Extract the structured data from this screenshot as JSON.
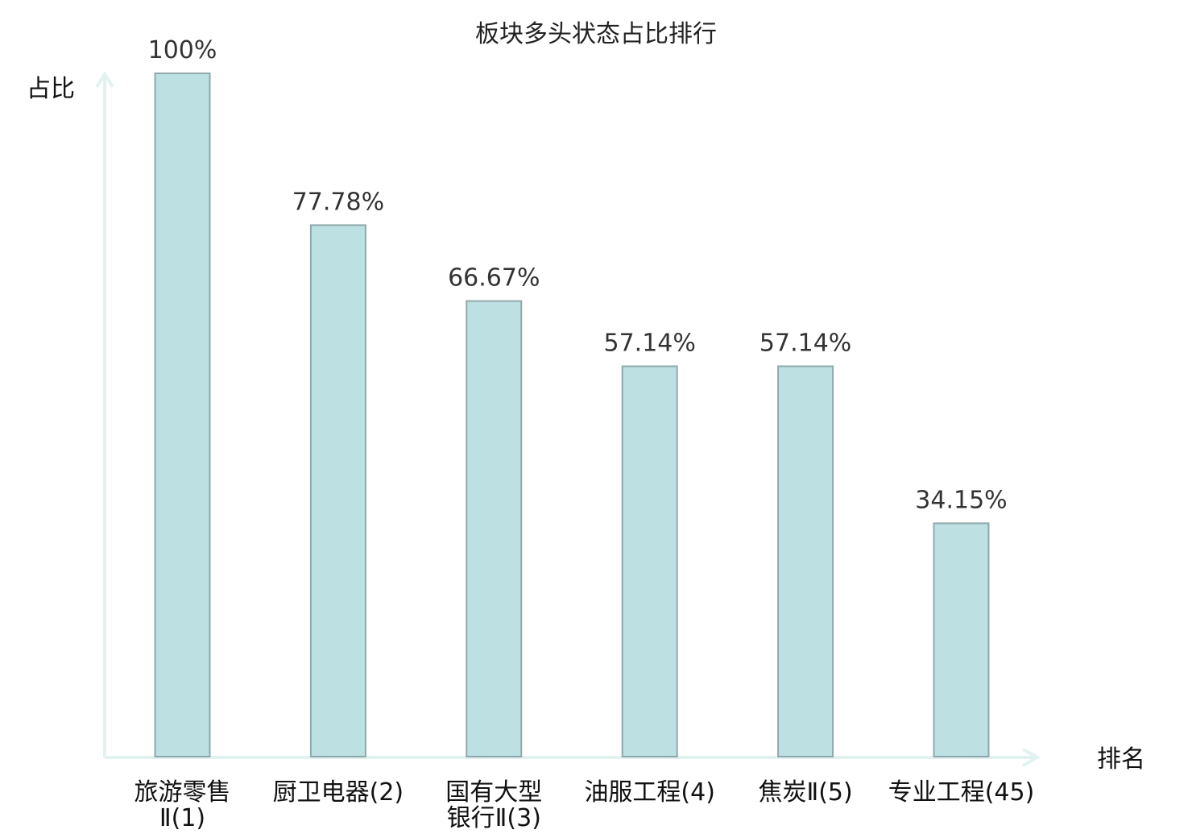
{
  "chart_data": {
    "type": "bar",
    "title": "板块多头状态占比排行",
    "ylabel": "占比",
    "xlabel": "排名",
    "ylim": [
      0,
      100
    ],
    "grid": false,
    "legend": "none",
    "categories": [
      [
        "旅游零售",
        "Ⅱ(1)"
      ],
      [
        "厨卫电器(2)"
      ],
      [
        "国有大型",
        "银行Ⅱ(3)"
      ],
      [
        "油服工程(4)"
      ],
      [
        "焦炭Ⅱ(5)"
      ],
      [
        "专业工程(45)"
      ]
    ],
    "values": [
      100,
      77.78,
      66.67,
      57.14,
      57.14,
      34.15
    ],
    "value_labels": [
      "100%",
      "77.78%",
      "66.67%",
      "57.14%",
      "57.14%",
      "34.15%"
    ],
    "highlight_index": 5
  },
  "colors": {
    "bar_fill": "#bde0e2",
    "bar_stroke": "#8fa9ab",
    "axis": "#e1f2f1",
    "highlight_label": "#e8201a",
    "label": "#111111",
    "value_label": "#333333"
  }
}
